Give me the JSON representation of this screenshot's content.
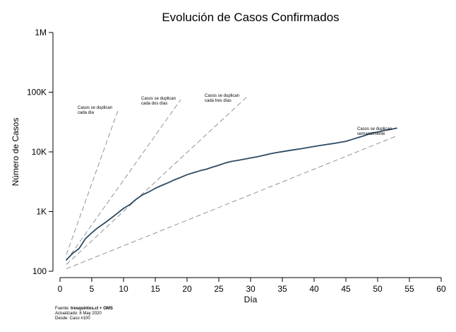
{
  "chart_data": {
    "type": "line",
    "title": "Evolución de Casos Confirmados",
    "xlabel": "Día",
    "ylabel": "Número de Casos",
    "xlim": [
      0,
      60
    ],
    "ylim": [
      100,
      1000000
    ],
    "yscale": "log",
    "x_ticks": [
      0,
      5,
      10,
      15,
      20,
      25,
      30,
      35,
      40,
      45,
      50,
      55,
      60
    ],
    "y_ticks": [
      {
        "value": 100,
        "label": "100"
      },
      {
        "value": 1000,
        "label": "1K"
      },
      {
        "value": 10000,
        "label": "10K"
      },
      {
        "value": 100000,
        "label": "100K"
      },
      {
        "value": 1000000,
        "label": "1M"
      }
    ],
    "grid": false,
    "series": [
      {
        "color": "#2d4a63",
        "x": [
          1,
          2,
          3,
          4,
          5,
          6,
          7,
          8,
          9,
          10,
          11,
          12,
          13,
          14,
          15,
          16,
          17,
          18,
          19,
          20,
          21,
          22,
          23,
          24,
          25,
          26,
          27,
          28,
          29,
          30,
          31,
          32,
          33,
          34,
          35,
          36,
          37,
          38,
          39,
          40,
          41,
          42,
          43,
          44,
          45,
          46,
          47,
          48,
          49,
          50,
          51,
          52,
          53
        ],
        "y": [
          155,
          200,
          240,
          350,
          440,
          540,
          640,
          770,
          930,
          1130,
          1310,
          1610,
          1910,
          2140,
          2450,
          2740,
          3030,
          3400,
          3740,
          4150,
          4470,
          4820,
          5120,
          5550,
          5970,
          6500,
          6930,
          7210,
          7530,
          7910,
          8270,
          8720,
          9250,
          9710,
          10090,
          10500,
          10900,
          11300,
          11800,
          12300,
          12800,
          13300,
          13800,
          14400,
          15000,
          16200,
          17500,
          18800,
          20600,
          21500,
          22700,
          23800,
          25000
        ]
      }
    ],
    "reference_lines": [
      {
        "label": "Casos se duplican cada día",
        "color": "#888888"
      },
      {
        "label": "Casos se duplican cada dos días",
        "color": "#888888"
      },
      {
        "label": "Casos se duplican cada tres días",
        "color": "#888888"
      },
      {
        "label": "Casos se duplican semanalmente",
        "color": "#888888"
      }
    ],
    "source": {
      "prefix": "Fuente: ",
      "bold": "tresquintos.cl + OMS",
      "updated": "Actualizado: 8 May 2020",
      "since": "Desde: Caso #100"
    }
  }
}
